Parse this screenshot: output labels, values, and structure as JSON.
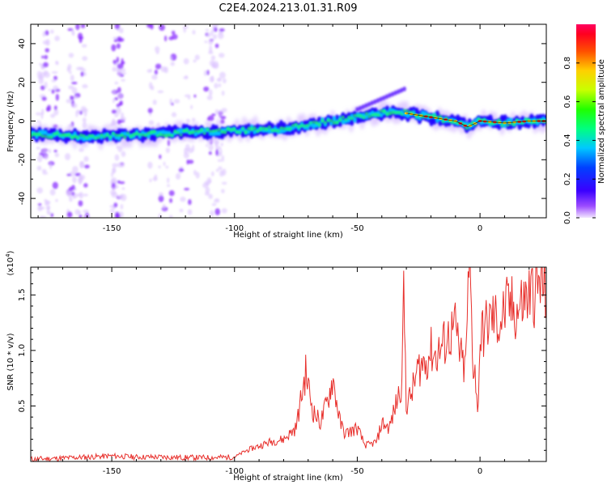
{
  "title": "C2E4.2024.213.01.31.R09",
  "colors": {
    "snr_line": "#e8302c",
    "spec_core": "#e8001e",
    "spec_mid": "#00c8ff",
    "spec_low": "#1a00ff",
    "spec_faint": "#9d4dff"
  },
  "chart_data": [
    {
      "id": "spectrogram",
      "type": "heatmap",
      "xlabel": "Height of straight line (km)",
      "ylabel": "Frequency (Hz)",
      "xlim": [
        -183,
        27
      ],
      "ylim": [
        -50,
        50
      ],
      "xticks": [
        -150,
        -100,
        -50,
        0
      ],
      "yticks": [
        -40,
        -20,
        0,
        20,
        40
      ],
      "colorbar": {
        "label": "Normalized spectral amplitude",
        "range": [
          0,
          1
        ],
        "ticks": [
          0.0,
          0.2,
          0.4,
          0.6,
          0.8
        ]
      },
      "ridge": {
        "x": [
          -180,
          -160,
          -140,
          -120,
          -100,
          -80,
          -70,
          -60,
          -50,
          -40,
          -35,
          -30,
          -20,
          -10,
          -5,
          0,
          10,
          20,
          27
        ],
        "freq": [
          -7,
          -8,
          -7,
          -6,
          -5,
          -4,
          -2,
          0,
          2,
          4,
          5,
          4,
          2,
          0,
          -3,
          0,
          -1,
          0,
          0
        ]
      },
      "grid": false,
      "legend": "none"
    },
    {
      "id": "snr",
      "type": "line",
      "xlabel": "Height of straight line (km)",
      "ylabel": "SNR (10 * v/v)",
      "y_scale_label": "(x10",
      "y_scale_exp": "4",
      "y_scale_close": ")",
      "xlim": [
        -183,
        27
      ],
      "ylim": [
        0,
        17500
      ],
      "xticks": [
        -150,
        -100,
        -50,
        0
      ],
      "yticks": [
        5000,
        10000,
        15000
      ],
      "ytick_labels": [
        "0.5",
        "1.0",
        "1.5"
      ],
      "series": [
        {
          "x": [
            -183,
            -170,
            -160,
            -150,
            -140,
            -130,
            -120,
            -110,
            -100,
            -95,
            -90,
            -85,
            -80,
            -75,
            -71,
            -68,
            -65,
            -62,
            -60,
            -57,
            -55,
            -52,
            -50,
            -47,
            -45,
            -42,
            -40,
            -37,
            -35,
            -32,
            -31,
            -30,
            -28,
            -25,
            -22,
            -20,
            -18,
            -15,
            -12,
            -10,
            -8,
            -6,
            -5,
            -4,
            -3,
            -2,
            -1,
            0,
            2,
            5,
            8,
            10,
            12,
            15,
            18,
            20,
            23,
            25,
            27
          ],
          "y": [
            200,
            300,
            400,
            500,
            400,
            400,
            350,
            350,
            400,
            1000,
            1400,
            1800,
            2000,
            3000,
            8000,
            4500,
            3500,
            5500,
            7500,
            3500,
            2500,
            2800,
            3000,
            1500,
            1500,
            1800,
            3500,
            3000,
            4500,
            7000,
            15000,
            5000,
            6000,
            8500,
            9000,
            10000,
            9500,
            10500,
            11500,
            12000,
            9500,
            8000,
            14500,
            17500,
            9000,
            8500,
            4000,
            11000,
            12000,
            13000,
            12500,
            13500,
            14000,
            13500,
            14500,
            15000,
            15500,
            16000,
            15500
          ]
        }
      ],
      "grid": false,
      "legend": "none"
    }
  ]
}
